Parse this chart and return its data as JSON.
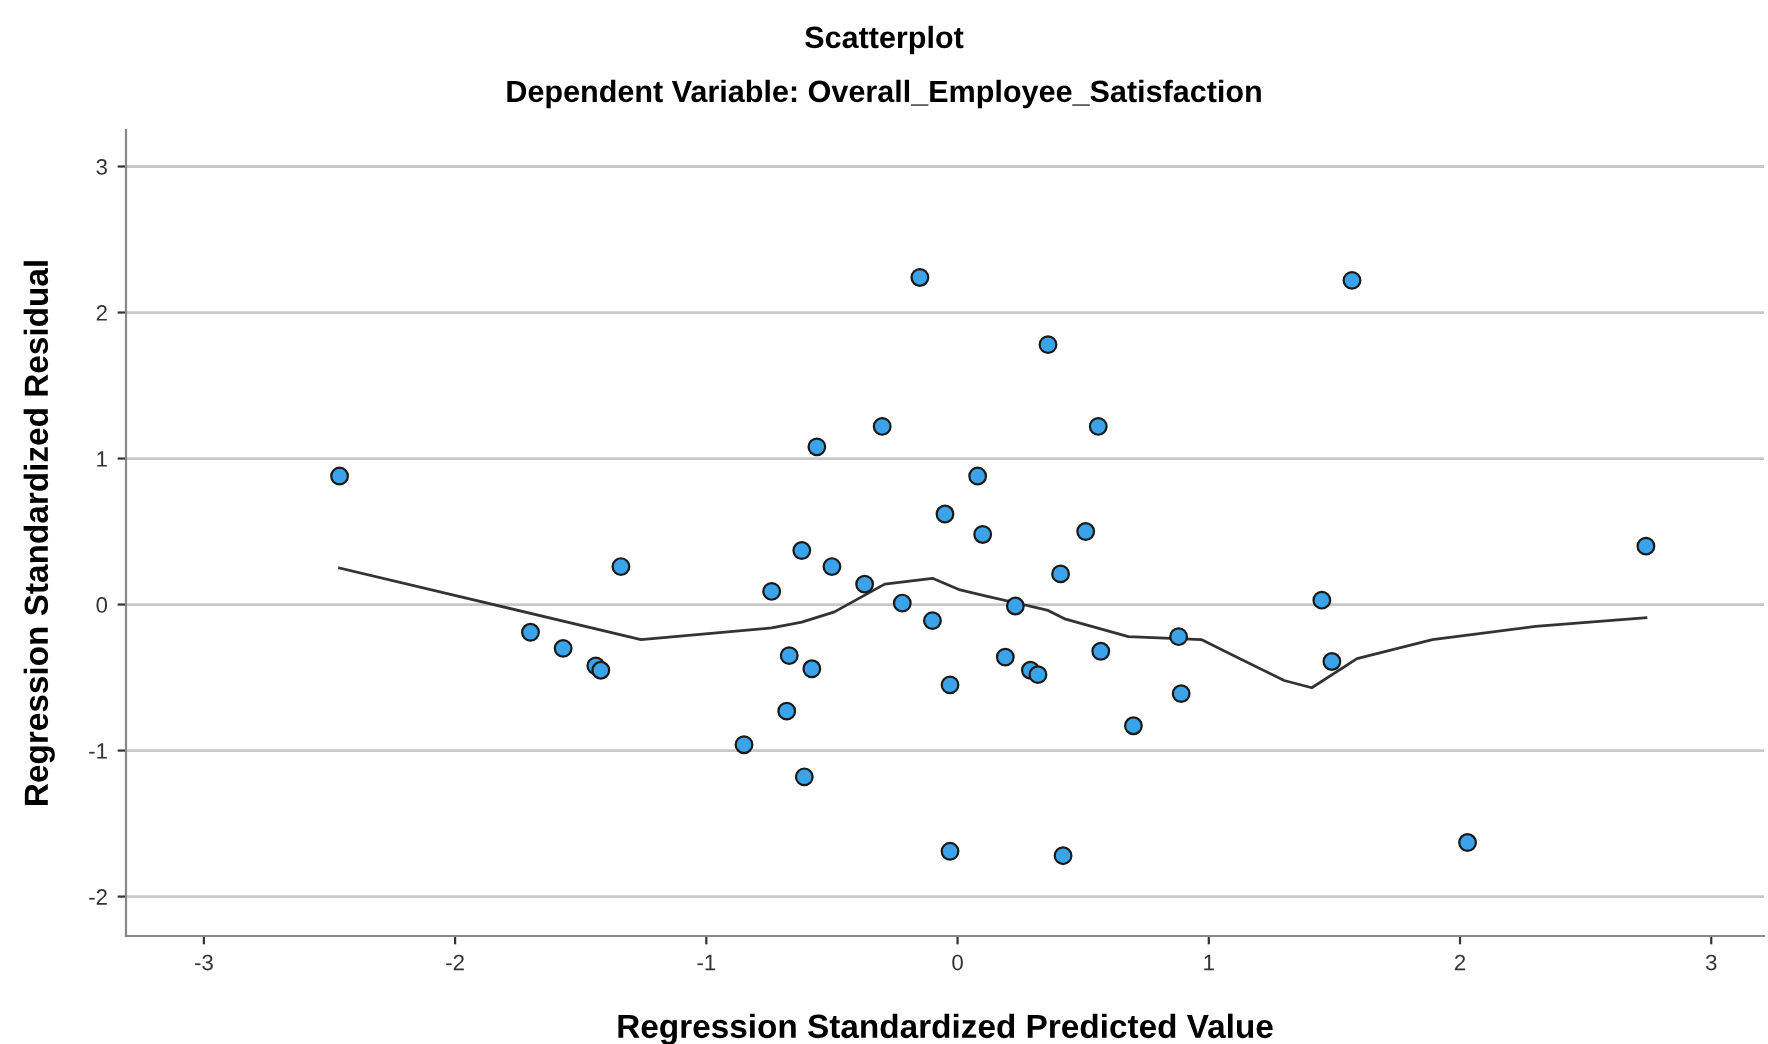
{
  "chart_data": {
    "type": "scatter",
    "title": "Scatterplot",
    "subtitle": "Dependent Variable: Overall_Employee_Satisfaction",
    "xlabel": "Regression Standardized Predicted Value",
    "ylabel": "Regression Standardized Residual",
    "xlim": [
      -3.31,
      3.21
    ],
    "ylim": [
      -2.27,
      3.25
    ],
    "xticks": [
      -3,
      -2,
      -1,
      0,
      1,
      2,
      3
    ],
    "yticks": [
      -2,
      -1,
      0,
      1,
      2,
      3
    ],
    "grid": "y",
    "marker": "circle",
    "series": [
      {
        "color": "#3aa3ea",
        "x": [
          -2.46,
          -1.7,
          -1.57,
          -1.44,
          -1.42,
          -1.34,
          -0.85,
          -0.74,
          -0.68,
          -0.67,
          -0.62,
          -0.61,
          -0.58,
          -0.56,
          -0.5,
          -0.37,
          -0.3,
          -0.22,
          -0.15,
          -0.1,
          -0.05,
          -0.03,
          -0.03,
          0.08,
          0.1,
          0.19,
          0.23,
          0.29,
          0.32,
          0.36,
          0.41,
          0.42,
          0.51,
          0.56,
          0.57,
          0.7,
          0.88,
          0.89,
          1.45,
          1.49,
          1.57,
          2.03,
          2.74
        ],
        "values": [
          0.88,
          -0.19,
          -0.3,
          -0.42,
          -0.45,
          0.26,
          -0.96,
          0.09,
          -0.73,
          -0.35,
          0.37,
          -1.18,
          -0.44,
          1.08,
          0.26,
          0.14,
          1.22,
          0.01,
          2.24,
          -0.11,
          0.62,
          -1.69,
          -0.55,
          0.88,
          0.48,
          -0.36,
          -0.01,
          -0.45,
          -0.48,
          1.78,
          0.21,
          -1.72,
          0.5,
          1.22,
          -0.32,
          -0.83,
          -0.22,
          -0.61,
          0.03,
          -0.39,
          2.22,
          -1.63,
          0.4
        ]
      },
      {
        "type": "line",
        "color": "#333333",
        "marker": "none",
        "x": [
          -2.46,
          -1.26,
          -0.74,
          -0.62,
          -0.49,
          -0.29,
          -0.1,
          0.01,
          0.11,
          0.36,
          0.43,
          0.68,
          0.97,
          1.1,
          1.3,
          1.41,
          1.59,
          1.89,
          2.3,
          2.74
        ],
        "values": [
          0.25,
          -0.24,
          -0.16,
          -0.12,
          -0.05,
          0.14,
          0.18,
          0.1,
          0.06,
          -0.04,
          -0.1,
          -0.22,
          -0.24,
          -0.35,
          -0.52,
          -0.57,
          -0.37,
          -0.24,
          -0.15,
          -0.09
        ]
      }
    ]
  }
}
